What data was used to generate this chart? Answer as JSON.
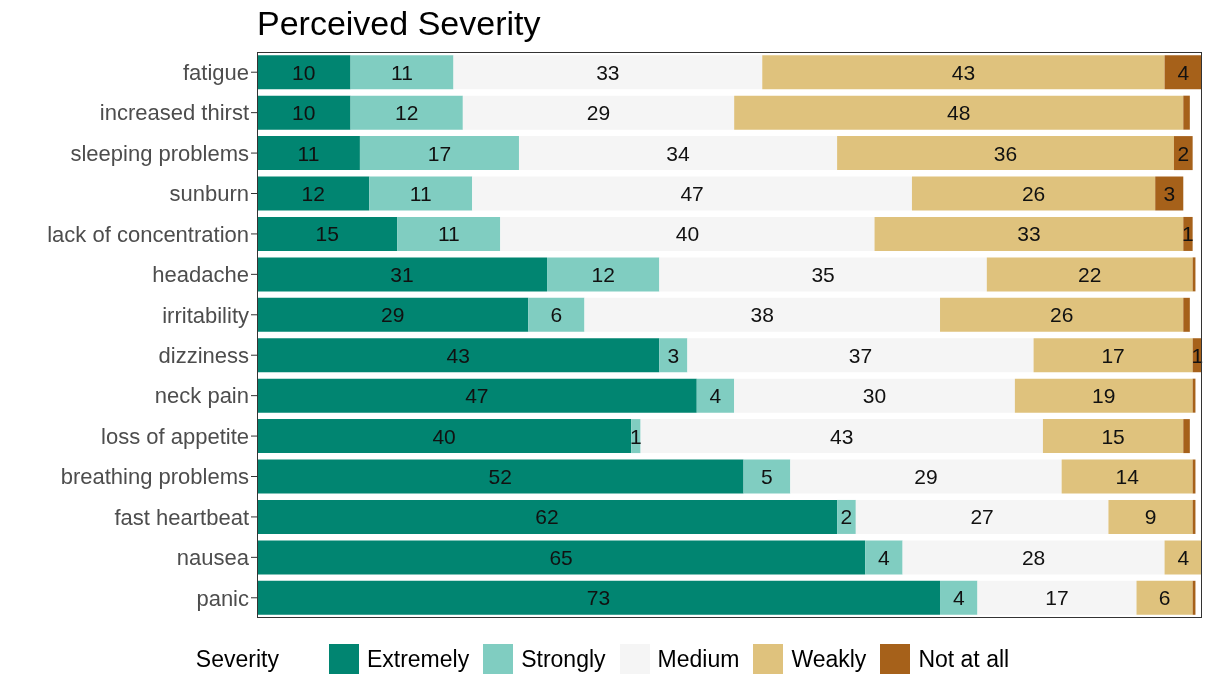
{
  "chart_data": {
    "type": "bar",
    "orientation": "horizontal",
    "stacked": true,
    "title": "Perceived Severity",
    "legend_title": "Severity",
    "legend": "bottom",
    "tick_labels": "y",
    "categories": [
      "fatigue",
      "increased thirst",
      "sleeping problems",
      "sunburn",
      "lack of concentration",
      "headache",
      "irritability",
      "dizziness",
      "neck pain",
      "loss of appetite",
      "breathing problems",
      "fast heartbeat",
      "nausea",
      "panic"
    ],
    "series": [
      {
        "name": "Extremely",
        "color": "#018571",
        "values": [
          10,
          10,
          11,
          12,
          15,
          31,
          29,
          43,
          47,
          40,
          52,
          62,
          65,
          73
        ],
        "value_labels": [
          "10",
          "10",
          "11",
          "12",
          "15",
          "31",
          "29",
          "43",
          "47",
          "40",
          "52",
          "62",
          "65",
          "73"
        ]
      },
      {
        "name": "Strongly",
        "color": "#80cdc1",
        "values": [
          11,
          12,
          17,
          11,
          11,
          12,
          6,
          3,
          4,
          1,
          5,
          2,
          4,
          4
        ],
        "value_labels": [
          "11",
          "12",
          "17",
          "11",
          "11",
          "12",
          "6",
          "3",
          "4",
          "1",
          "5",
          "2",
          "4",
          "4"
        ]
      },
      {
        "name": "Medium",
        "color": "#f5f5f5",
        "values": [
          33,
          29,
          34,
          47,
          40,
          35,
          38,
          37,
          30,
          43,
          29,
          27,
          28,
          17
        ],
        "value_labels": [
          "33",
          "29",
          "34",
          "47",
          "40",
          "35",
          "38",
          "37",
          "30",
          "43",
          "29",
          "27",
          "28",
          "17"
        ]
      },
      {
        "name": "Weakly",
        "color": "#dfc27d",
        "values": [
          43,
          48,
          36,
          26,
          33,
          22,
          26,
          17,
          19,
          15,
          14,
          9,
          4,
          6
        ],
        "value_labels": [
          "43",
          "48",
          "36",
          "26",
          "33",
          "22",
          "26",
          "17",
          "19",
          "15",
          "14",
          "9",
          "4",
          "6"
        ]
      },
      {
        "name": "Not at all",
        "color": "#a6611a",
        "values": [
          4,
          0.7,
          2,
          3,
          1,
          0.3,
          0.7,
          1,
          0.3,
          0.7,
          0.3,
          0.3,
          0,
          0.3
        ],
        "value_labels": [
          "4",
          null,
          "2",
          "3",
          "1",
          null,
          null,
          "1",
          null,
          null,
          null,
          null,
          null,
          null
        ]
      }
    ]
  }
}
